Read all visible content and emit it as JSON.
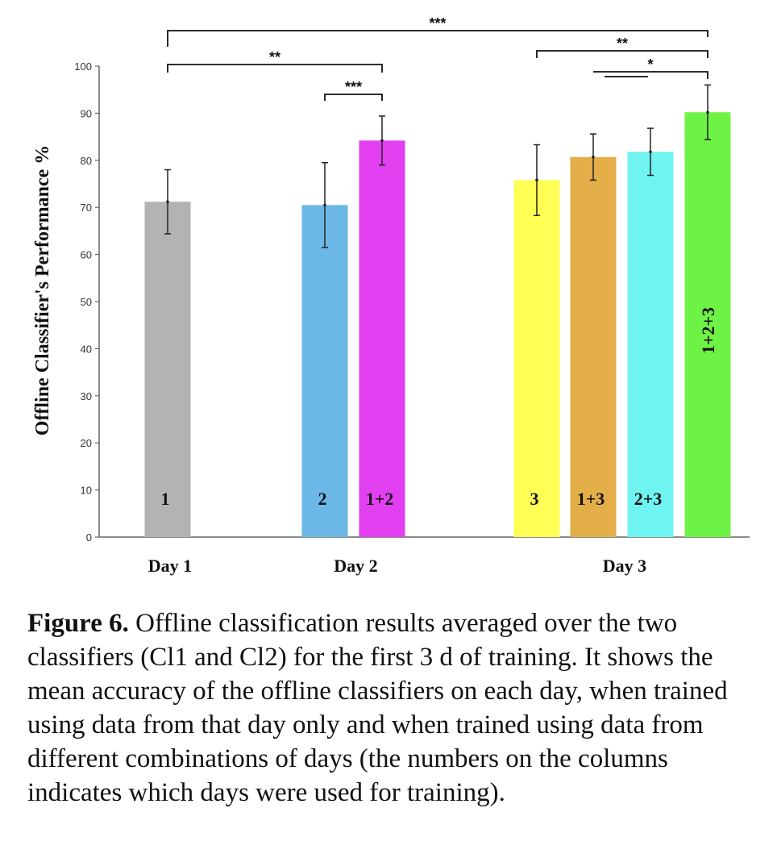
{
  "chart_data": {
    "type": "bar",
    "ylabel": "Offline Classifier's Performance %",
    "ylim": [
      0,
      100
    ],
    "yticks": [
      0,
      10,
      20,
      30,
      40,
      50,
      60,
      70,
      80,
      90,
      100
    ],
    "grid": false,
    "groups": [
      {
        "label": "Day 1",
        "bars": [
          0
        ]
      },
      {
        "label": "Day 2",
        "bars": [
          1,
          2
        ]
      },
      {
        "label": "Day 3",
        "bars": [
          3,
          4,
          5,
          6
        ]
      }
    ],
    "bars": [
      {
        "label": "1",
        "value": 71.2,
        "err": 6.8,
        "color": "#b3b3b3"
      },
      {
        "label": "2",
        "value": 70.5,
        "err": 9.0,
        "color": "#6bb8e6"
      },
      {
        "label": "1+2",
        "value": 84.2,
        "err": 5.2,
        "color": "#e23ff0"
      },
      {
        "label": "3",
        "value": 75.8,
        "err": 7.5,
        "color": "#ffff55"
      },
      {
        "label": "1+3",
        "value": 80.7,
        "err": 4.9,
        "color": "#e3ae48"
      },
      {
        "label": "2+3",
        "value": 81.8,
        "err": 5.0,
        "color": "#6ff4f2"
      },
      {
        "label": "1+2+3",
        "value": 90.2,
        "err": 5.8,
        "color": "#6ff246"
      }
    ],
    "significance": [
      {
        "from": 0,
        "to": 6,
        "label": "***"
      },
      {
        "from": 0,
        "to": 2,
        "label": "**"
      },
      {
        "from": 1,
        "to": 2,
        "label": "***"
      },
      {
        "from": 3,
        "to": 6,
        "label": "**"
      },
      {
        "from": 4,
        "to": 6,
        "label": "*",
        "stub_from": 5
      }
    ]
  },
  "caption": {
    "lead": "Figure 6.",
    "text": " Offline classification results averaged over the two classifiers (Cl1 and Cl2) for the first 3 d of training. It shows the mean accuracy of the offline classifiers on each day, when trained using data from that day only and when trained using data from different combinations of days (the numbers on the columns indicates which days were used for training)."
  }
}
